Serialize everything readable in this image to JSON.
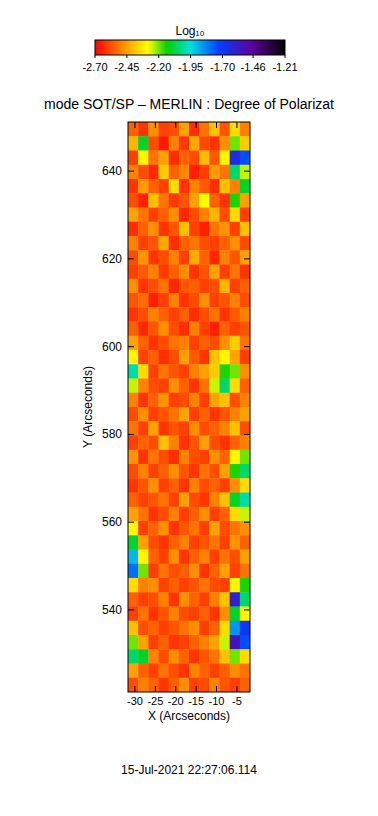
{
  "chart_data": {
    "type": "heatmap",
    "title": "mode SOT/SP – MERLIN : Degree of Polarizat",
    "x_label": "X (Arcseconds)",
    "y_label": "Y (Arcseconds)",
    "annotations": [
      "15-Jul-2021 22:27:06.114"
    ],
    "xlim": [
      -31.7,
      -1.8
    ],
    "ylim": [
      521.3,
      651.2
    ],
    "xticks": [
      -30,
      -25,
      -20,
      -15,
      -10,
      -5
    ],
    "yticks": [
      540,
      560,
      580,
      600,
      620,
      640
    ],
    "colorbar": {
      "label": "Log₁₀",
      "zlim": [
        -2.7,
        -1.21
      ],
      "zticks": [
        {
          "value": -2.7,
          "label": "-2.70"
        },
        {
          "value": -2.45,
          "label": "-2.45"
        },
        {
          "value": -2.2,
          "label": "-2.20"
        },
        {
          "value": -1.95,
          "label": "-1.95"
        },
        {
          "value": -1.7,
          "label": "-1.70"
        },
        {
          "value": -1.46,
          "label": "-1.46"
        },
        {
          "value": -1.21,
          "label": "-1.21"
        }
      ]
    },
    "cells": [
      [
        -2.55,
        -2.62,
        -2.48,
        -2.6,
        -2.58,
        -2.45,
        -2.63,
        -2.52,
        -2.4,
        -2.57,
        -2.35,
        -2.5
      ],
      [
        -2.42,
        -2.1,
        -2.58,
        -2.66,
        -2.5,
        -2.61,
        -2.44,
        -2.59,
        -2.62,
        -2.48,
        -2.2,
        -2.38
      ],
      [
        -2.6,
        -2.3,
        -2.52,
        -2.45,
        -2.63,
        -2.55,
        -2.58,
        -2.41,
        -2.57,
        -2.3,
        -1.65,
        -1.75
      ],
      [
        -2.5,
        -2.58,
        -2.64,
        -2.38,
        -2.55,
        -2.49,
        -2.65,
        -2.6,
        -2.46,
        -2.52,
        -2.05,
        -2.25
      ],
      [
        -2.62,
        -2.46,
        -2.55,
        -2.6,
        -2.35,
        -2.62,
        -2.5,
        -2.56,
        -2.63,
        -2.4,
        -2.5,
        -2.1
      ],
      [
        -2.58,
        -2.65,
        -2.4,
        -2.52,
        -2.61,
        -2.57,
        -2.45,
        -2.28,
        -2.55,
        -2.62,
        -2.15,
        -2.45
      ],
      [
        -2.45,
        -2.52,
        -2.6,
        -2.55,
        -2.48,
        -2.64,
        -2.58,
        -2.5,
        -2.42,
        -2.58,
        -2.35,
        -2.6
      ],
      [
        -2.63,
        -2.55,
        -2.48,
        -2.62,
        -2.57,
        -2.4,
        -2.6,
        -2.65,
        -2.52,
        -2.47,
        -2.6,
        -2.4
      ],
      [
        -2.5,
        -2.6,
        -2.57,
        -2.44,
        -2.63,
        -2.55,
        -2.52,
        -2.58,
        -2.6,
        -2.55,
        -2.48,
        -2.58
      ],
      [
        -2.58,
        -2.47,
        -2.62,
        -2.58,
        -2.5,
        -2.6,
        -2.43,
        -2.55,
        -2.64,
        -2.5,
        -2.57,
        -2.45
      ],
      [
        -2.6,
        -2.56,
        -2.5,
        -2.61,
        -2.55,
        -2.48,
        -2.62,
        -2.57,
        -2.45,
        -2.6,
        -2.52,
        -2.62
      ],
      [
        -2.48,
        -2.62,
        -2.58,
        -2.52,
        -2.64,
        -2.57,
        -2.55,
        -2.6,
        -2.58,
        -2.42,
        -2.6,
        -2.55
      ],
      [
        -2.57,
        -2.53,
        -2.65,
        -2.6,
        -2.5,
        -2.62,
        -2.58,
        -2.48,
        -2.6,
        -2.57,
        -2.5,
        -2.58
      ],
      [
        -2.62,
        -2.58,
        -2.5,
        -2.55,
        -2.6,
        -2.55,
        -2.63,
        -2.58,
        -2.52,
        -2.62,
        -2.56,
        -2.5
      ],
      [
        -2.55,
        -2.64,
        -2.57,
        -2.48,
        -2.58,
        -2.63,
        -2.5,
        -2.6,
        -2.65,
        -2.55,
        -2.6,
        -2.57
      ],
      [
        -2.45,
        -2.55,
        -2.62,
        -2.58,
        -2.52,
        -2.5,
        -2.6,
        -2.55,
        -2.58,
        -2.48,
        -2.38,
        -2.52
      ],
      [
        -2.3,
        -2.6,
        -2.55,
        -2.63,
        -2.58,
        -2.45,
        -2.56,
        -2.62,
        -2.4,
        -2.3,
        -2.45,
        -2.6
      ],
      [
        -2.0,
        -2.35,
        -2.6,
        -2.52,
        -2.57,
        -2.6,
        -2.5,
        -2.45,
        -2.38,
        -2.15,
        -2.2,
        -2.48
      ],
      [
        -2.25,
        -2.5,
        -2.58,
        -2.6,
        -2.48,
        -2.55,
        -2.62,
        -2.52,
        -2.25,
        -2.05,
        -2.35,
        -2.55
      ],
      [
        -2.5,
        -2.62,
        -2.55,
        -2.47,
        -2.6,
        -2.58,
        -2.5,
        -2.6,
        -2.45,
        -2.4,
        -2.58,
        -2.5
      ],
      [
        -2.58,
        -2.48,
        -2.6,
        -2.57,
        -2.52,
        -2.45,
        -2.6,
        -2.55,
        -2.62,
        -2.57,
        -2.5,
        -2.45
      ],
      [
        -2.52,
        -2.6,
        -2.45,
        -2.62,
        -2.57,
        -2.6,
        -2.48,
        -2.58,
        -2.55,
        -2.5,
        -2.4,
        -2.58
      ],
      [
        -2.6,
        -2.55,
        -2.58,
        -2.4,
        -2.5,
        -2.62,
        -2.57,
        -2.45,
        -2.58,
        -2.62,
        -2.55,
        -2.5
      ],
      [
        -2.47,
        -2.62,
        -2.52,
        -2.58,
        -2.63,
        -2.5,
        -2.58,
        -2.6,
        -2.48,
        -2.55,
        -2.3,
        -2.2
      ],
      [
        -2.58,
        -2.5,
        -2.6,
        -2.55,
        -2.48,
        -2.57,
        -2.62,
        -2.52,
        -2.58,
        -2.45,
        -2.15,
        -2.05
      ],
      [
        -2.62,
        -2.57,
        -2.48,
        -2.6,
        -2.55,
        -2.62,
        -2.5,
        -2.58,
        -2.55,
        -2.6,
        -2.48,
        -2.35
      ],
      [
        -2.55,
        -2.6,
        -2.57,
        -2.52,
        -2.6,
        -2.45,
        -2.58,
        -2.62,
        -2.5,
        -2.4,
        -2.1,
        -2.0
      ],
      [
        -2.45,
        -2.52,
        -2.62,
        -2.58,
        -2.5,
        -2.6,
        -2.55,
        -2.48,
        -2.6,
        -2.55,
        -2.35,
        -2.25
      ],
      [
        -2.3,
        -2.6,
        -2.55,
        -2.48,
        -2.62,
        -2.57,
        -2.52,
        -2.6,
        -2.45,
        -2.58,
        -2.52,
        -2.48
      ],
      [
        -2.1,
        -2.45,
        -2.58,
        -2.62,
        -2.55,
        -2.5,
        -2.6,
        -2.57,
        -2.52,
        -2.6,
        -2.47,
        -2.55
      ],
      [
        -1.9,
        -2.3,
        -2.55,
        -2.6,
        -2.48,
        -2.62,
        -2.55,
        -2.5,
        -2.6,
        -2.52,
        -2.58,
        -2.45
      ],
      [
        -1.8,
        -2.2,
        -2.6,
        -2.52,
        -2.58,
        -2.55,
        -2.48,
        -2.62,
        -2.55,
        -2.45,
        -2.6,
        -2.52
      ],
      [
        -2.35,
        -2.5,
        -2.48,
        -2.6,
        -2.55,
        -2.6,
        -2.57,
        -2.52,
        -2.58,
        -2.6,
        -2.3,
        -2.15
      ],
      [
        -2.55,
        -2.6,
        -2.58,
        -2.5,
        -2.62,
        -2.48,
        -2.55,
        -2.6,
        -2.5,
        -2.4,
        -1.6,
        -2.05
      ],
      [
        -2.6,
        -2.52,
        -2.62,
        -2.57,
        -2.5,
        -2.58,
        -2.6,
        -2.55,
        -2.62,
        -2.48,
        -2.1,
        -2.3
      ],
      [
        -2.4,
        -2.58,
        -2.55,
        -2.6,
        -2.57,
        -2.52,
        -2.48,
        -2.6,
        -2.55,
        -2.35,
        -1.85,
        -1.7
      ],
      [
        -2.2,
        -2.45,
        -2.6,
        -2.55,
        -2.62,
        -2.6,
        -2.55,
        -2.5,
        -2.45,
        -2.25,
        -1.55,
        -1.75
      ],
      [
        -2.05,
        -2.1,
        -2.5,
        -2.58,
        -2.48,
        -2.55,
        -2.62,
        -2.57,
        -2.52,
        -2.4,
        -2.2,
        -2.35
      ],
      [
        -2.45,
        -2.55,
        -2.6,
        -2.52,
        -2.58,
        -2.62,
        -2.5,
        -2.55,
        -2.6,
        -2.55,
        -2.48,
        -2.52
      ],
      [
        -2.58,
        -2.5,
        -2.55,
        -2.62,
        -2.55,
        -2.48,
        -2.6,
        -2.58,
        -2.5,
        -2.57,
        -2.6,
        -2.55
      ]
    ]
  }
}
